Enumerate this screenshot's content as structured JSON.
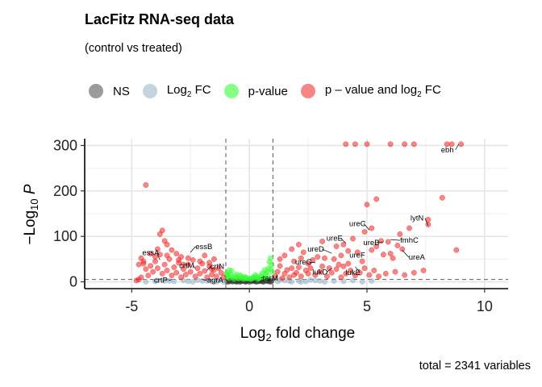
{
  "chart_data": {
    "type": "scatter",
    "title": "LacFitz RNA-seq data",
    "subtitle": "(control vs treated)",
    "xlabel": "Log2 fold change",
    "ylabel": "-Log10 P",
    "xlim": [
      -7,
      11
    ],
    "ylim": [
      -15,
      315
    ],
    "x_ticks": [
      -5,
      0,
      5,
      10
    ],
    "y_ticks": [
      0,
      100,
      200,
      300
    ],
    "tick_labels": {
      "x": [
        "-5",
        "0",
        "5",
        "10"
      ],
      "y": [
        "0",
        "100",
        "200",
        "300"
      ]
    },
    "fc_cutoff": 1,
    "p_cutoff_log10": 5,
    "grid": true,
    "legend_position": "top",
    "caption": "total = 2341 variables",
    "legend": [
      {
        "label": "NS",
        "color": "#666666"
      },
      {
        "label": "Log2 FC",
        "color": "#8fb3c5"
      },
      {
        "label": "p-value",
        "color": "#33ff33"
      },
      {
        "label": "p – value and log2 FC",
        "color": "#ee2222"
      }
    ],
    "annotations": [
      {
        "text": "ebh",
        "x": 8.9,
        "y": 303
      },
      {
        "text": "lytN",
        "x": 7.6,
        "y": 124
      },
      {
        "text": "ureC",
        "x": 5.1,
        "y": 114
      },
      {
        "text": "fmhC",
        "x": 6.0,
        "y": 93
      },
      {
        "text": "ureB",
        "x": 5.7,
        "y": 88
      },
      {
        "text": "ureE",
        "x": 4.1,
        "y": 85
      },
      {
        "text": "ureA",
        "x": 6.5,
        "y": 70
      },
      {
        "text": "ureD",
        "x": 3.5,
        "y": 63
      },
      {
        "text": "ureF",
        "x": 4.8,
        "y": 60
      },
      {
        "text": "ureG",
        "x": 2.8,
        "y": 42
      },
      {
        "text": "lukE",
        "x": 4.5,
        "y": 33
      },
      {
        "text": "lukD",
        "x": 3.5,
        "y": 30
      },
      {
        "text": "essB",
        "x": -2.5,
        "y": 65
      },
      {
        "text": "essA",
        "x": -3.8,
        "y": 48
      },
      {
        "text": "crtM",
        "x": -2.3,
        "y": 30
      },
      {
        "text": "crtN",
        "x": -1.8,
        "y": 25
      },
      {
        "text": "crtP",
        "x": -3.3,
        "y": 5
      },
      {
        "text": "agrA",
        "x": -2.0,
        "y": 5
      },
      {
        "text": "tarM",
        "x": 0.5,
        "y": 10
      }
    ],
    "series": [
      {
        "name": "NS",
        "color": "#333333",
        "points": [
          [
            -0.9,
            0
          ],
          [
            -0.8,
            1
          ],
          [
            -0.7,
            0.5
          ],
          [
            -0.6,
            2
          ],
          [
            -0.5,
            1
          ],
          [
            -0.4,
            0
          ],
          [
            -0.3,
            3
          ],
          [
            -0.2,
            1
          ],
          [
            -0.1,
            2
          ],
          [
            0,
            0
          ],
          [
            0.1,
            1
          ],
          [
            0.2,
            2
          ],
          [
            0.3,
            0
          ],
          [
            0.4,
            1
          ],
          [
            0.5,
            3
          ],
          [
            0.6,
            0
          ],
          [
            0.7,
            2
          ],
          [
            0.8,
            1
          ],
          [
            0.9,
            0
          ],
          [
            -0.85,
            3
          ],
          [
            -0.65,
            2
          ],
          [
            -0.45,
            4
          ],
          [
            -0.25,
            2
          ],
          [
            -0.05,
            4
          ],
          [
            0.15,
            3
          ],
          [
            0.35,
            4
          ],
          [
            0.55,
            1
          ],
          [
            0.75,
            3
          ],
          [
            0.95,
            2
          ],
          [
            -0.95,
            1
          ],
          [
            -0.75,
            4
          ],
          [
            -0.55,
            0
          ],
          [
            -0.35,
            1
          ],
          [
            -0.15,
            0
          ],
          [
            0.05,
            3
          ],
          [
            0.25,
            1
          ],
          [
            0.45,
            2
          ],
          [
            0.65,
            4
          ],
          [
            0.85,
            2
          ]
        ]
      },
      {
        "name": "Log2 FC",
        "color": "#8fb3c5",
        "points": [
          [
            -4.0,
            1
          ],
          [
            -3.6,
            2
          ],
          [
            -3.2,
            1
          ],
          [
            -2.8,
            3
          ],
          [
            -2.4,
            0
          ],
          [
            -2.0,
            2
          ],
          [
            -1.6,
            1
          ],
          [
            -1.3,
            3
          ],
          [
            -1.1,
            0
          ],
          [
            -4.4,
            0
          ],
          [
            -3.9,
            3
          ],
          [
            -3.4,
            2
          ],
          [
            -2.6,
            1
          ],
          [
            -2.2,
            4
          ],
          [
            -1.8,
            2
          ],
          [
            -1.4,
            0
          ],
          [
            1.2,
            1
          ],
          [
            1.5,
            3
          ],
          [
            1.8,
            0
          ],
          [
            2.1,
            2
          ],
          [
            2.4,
            1
          ],
          [
            2.8,
            3
          ],
          [
            3.2,
            0
          ],
          [
            3.6,
            2
          ],
          [
            4.0,
            1
          ],
          [
            4.4,
            3
          ],
          [
            4.8,
            0
          ],
          [
            5.2,
            2
          ],
          [
            1.3,
            4
          ],
          [
            1.7,
            2
          ],
          [
            2.2,
            0
          ],
          [
            2.6,
            4
          ],
          [
            3.0,
            2
          ]
        ]
      },
      {
        "name": "p-value",
        "color": "#33ff33",
        "points": [
          [
            -0.95,
            20
          ],
          [
            -0.9,
            14
          ],
          [
            -0.85,
            8
          ],
          [
            -0.8,
            17
          ],
          [
            -0.7,
            10
          ],
          [
            -0.65,
            6
          ],
          [
            -0.6,
            12
          ],
          [
            -0.5,
            9
          ],
          [
            -0.45,
            7
          ],
          [
            -0.4,
            15
          ],
          [
            -0.3,
            8
          ],
          [
            -0.25,
            6
          ],
          [
            -0.2,
            11
          ],
          [
            -0.1,
            7
          ],
          [
            0.1,
            7
          ],
          [
            0.2,
            9
          ],
          [
            0.3,
            12
          ],
          [
            0.4,
            8
          ],
          [
            0.5,
            14
          ],
          [
            0.6,
            10
          ],
          [
            0.7,
            17
          ],
          [
            0.75,
            22
          ],
          [
            0.8,
            30
          ],
          [
            0.85,
            44
          ],
          [
            0.9,
            52
          ],
          [
            0.95,
            38
          ],
          [
            0.65,
            26
          ],
          [
            0.55,
            19
          ],
          [
            0.45,
            9
          ],
          [
            0.35,
            6
          ],
          [
            -0.75,
            24
          ],
          [
            -0.55,
            16
          ],
          [
            -0.35,
            12
          ],
          [
            -0.15,
            9
          ],
          [
            0.05,
            6
          ],
          [
            0.25,
            15
          ],
          [
            0.15,
            10
          ],
          [
            -0.05,
            8
          ],
          [
            -0.95,
            11
          ],
          [
            -0.85,
            26
          ],
          [
            -0.98,
            16
          ],
          [
            0.98,
            22
          ],
          [
            0.9,
            28
          ],
          [
            0.8,
            12
          ],
          [
            0.7,
            8
          ]
        ]
      },
      {
        "name": "p – value and log2 FC",
        "color": "#ee2222",
        "points": [
          [
            4.1,
            303
          ],
          [
            4.5,
            303
          ],
          [
            5.0,
            303
          ],
          [
            6.0,
            303
          ],
          [
            6.6,
            303
          ],
          [
            7.0,
            303
          ],
          [
            8.4,
            303
          ],
          [
            8.6,
            303
          ],
          [
            9.0,
            303
          ],
          [
            -4.4,
            213
          ],
          [
            5.0,
            170
          ],
          [
            5.4,
            182
          ],
          [
            8.2,
            185
          ],
          [
            7.6,
            137
          ],
          [
            7.6,
            126
          ],
          [
            8.8,
            70
          ],
          [
            5.2,
            118
          ],
          [
            4.4,
            95
          ],
          [
            6.4,
            105
          ],
          [
            6.8,
            118
          ],
          [
            5.6,
            90
          ],
          [
            5.9,
            88
          ],
          [
            4.9,
            110
          ],
          [
            3.1,
            89
          ],
          [
            2.1,
            82
          ],
          [
            2.3,
            65
          ],
          [
            3.7,
            78
          ],
          [
            4.0,
            82
          ],
          [
            4.2,
            68
          ],
          [
            6.3,
            80
          ],
          [
            6.0,
            62
          ],
          [
            6.5,
            72
          ],
          [
            2.9,
            55
          ],
          [
            3.2,
            52
          ],
          [
            3.6,
            50
          ],
          [
            3.9,
            58
          ],
          [
            4.8,
            45
          ],
          [
            4.6,
            65
          ],
          [
            5.2,
            70
          ],
          [
            5.4,
            78
          ],
          [
            5.7,
            60
          ],
          [
            6.1,
            52
          ],
          [
            4.2,
            40
          ],
          [
            4.0,
            34
          ],
          [
            3.4,
            30
          ],
          [
            3.8,
            38
          ],
          [
            2.5,
            40
          ],
          [
            2.7,
            48
          ],
          [
            2.2,
            52
          ],
          [
            1.9,
            45
          ],
          [
            1.5,
            58
          ],
          [
            1.3,
            50
          ],
          [
            1.8,
            72
          ],
          [
            1.1,
            12
          ],
          [
            1.2,
            22
          ],
          [
            1.3,
            35
          ],
          [
            1.4,
            8
          ],
          [
            1.5,
            18
          ],
          [
            1.6,
            26
          ],
          [
            1.7,
            10
          ],
          [
            1.8,
            30
          ],
          [
            1.9,
            15
          ],
          [
            2.0,
            20
          ],
          [
            2.1,
            32
          ],
          [
            2.2,
            12
          ],
          [
            2.4,
            25
          ],
          [
            2.5,
            18
          ],
          [
            2.6,
            30
          ],
          [
            2.8,
            15
          ],
          [
            3.0,
            22
          ],
          [
            3.1,
            34
          ],
          [
            3.3,
            12
          ],
          [
            3.5,
            20
          ],
          [
            3.7,
            28
          ],
          [
            3.9,
            10
          ],
          [
            4.1,
            18
          ],
          [
            4.3,
            25
          ],
          [
            4.5,
            14
          ],
          [
            4.7,
            20
          ],
          [
            4.9,
            30
          ],
          [
            5.1,
            15
          ],
          [
            5.3,
            25
          ],
          [
            5.5,
            12
          ],
          [
            5.8,
            18
          ],
          [
            6.2,
            22
          ],
          [
            6.6,
            15
          ],
          [
            7.0,
            20
          ],
          [
            7.4,
            25
          ],
          [
            -1.1,
            10
          ],
          [
            -1.2,
            20
          ],
          [
            -1.3,
            30
          ],
          [
            -1.4,
            12
          ],
          [
            -1.5,
            26
          ],
          [
            -1.6,
            16
          ],
          [
            -1.7,
            34
          ],
          [
            -1.8,
            10
          ],
          [
            -1.9,
            24
          ],
          [
            -2.0,
            40
          ],
          [
            -2.1,
            18
          ],
          [
            -2.2,
            30
          ],
          [
            -2.3,
            12
          ],
          [
            -2.5,
            22
          ],
          [
            -2.6,
            38
          ],
          [
            -2.7,
            16
          ],
          [
            -2.8,
            28
          ],
          [
            -2.9,
            10
          ],
          [
            -3.0,
            42
          ],
          [
            -3.1,
            20
          ],
          [
            -3.2,
            32
          ],
          [
            -3.3,
            14
          ],
          [
            -3.4,
            50
          ],
          [
            -3.5,
            25
          ],
          [
            -3.6,
            38
          ],
          [
            -3.7,
            18
          ],
          [
            -3.8,
            60
          ],
          [
            -3.9,
            30
          ],
          [
            -4.0,
            45
          ],
          [
            -4.1,
            22
          ],
          [
            -4.2,
            35
          ],
          [
            -4.3,
            14
          ],
          [
            -4.4,
            28
          ],
          [
            -4.5,
            40
          ],
          [
            -4.6,
            10
          ],
          [
            -4.7,
            5
          ],
          [
            -4.8,
            3
          ],
          [
            -3.8,
            105
          ],
          [
            -3.7,
            113
          ],
          [
            -3.6,
            90
          ],
          [
            -3.5,
            82
          ],
          [
            -3.9,
            72
          ],
          [
            -3.3,
            70
          ],
          [
            -3.1,
            62
          ],
          [
            -2.9,
            55
          ],
          [
            -2.6,
            52
          ],
          [
            -2.4,
            48
          ],
          [
            -2.1,
            45
          ],
          [
            -1.9,
            58
          ],
          [
            -1.7,
            42
          ],
          [
            -1.5,
            50
          ],
          [
            -4.2,
            62
          ],
          [
            -4.0,
            55
          ],
          [
            -4.5,
            45
          ],
          [
            -4.6,
            52
          ],
          [
            -4.7,
            38
          ],
          [
            -3.5,
            58
          ],
          [
            -3.0,
            48
          ],
          [
            -2.8,
            38
          ],
          [
            -1.6,
            28
          ]
        ]
      }
    ]
  }
}
